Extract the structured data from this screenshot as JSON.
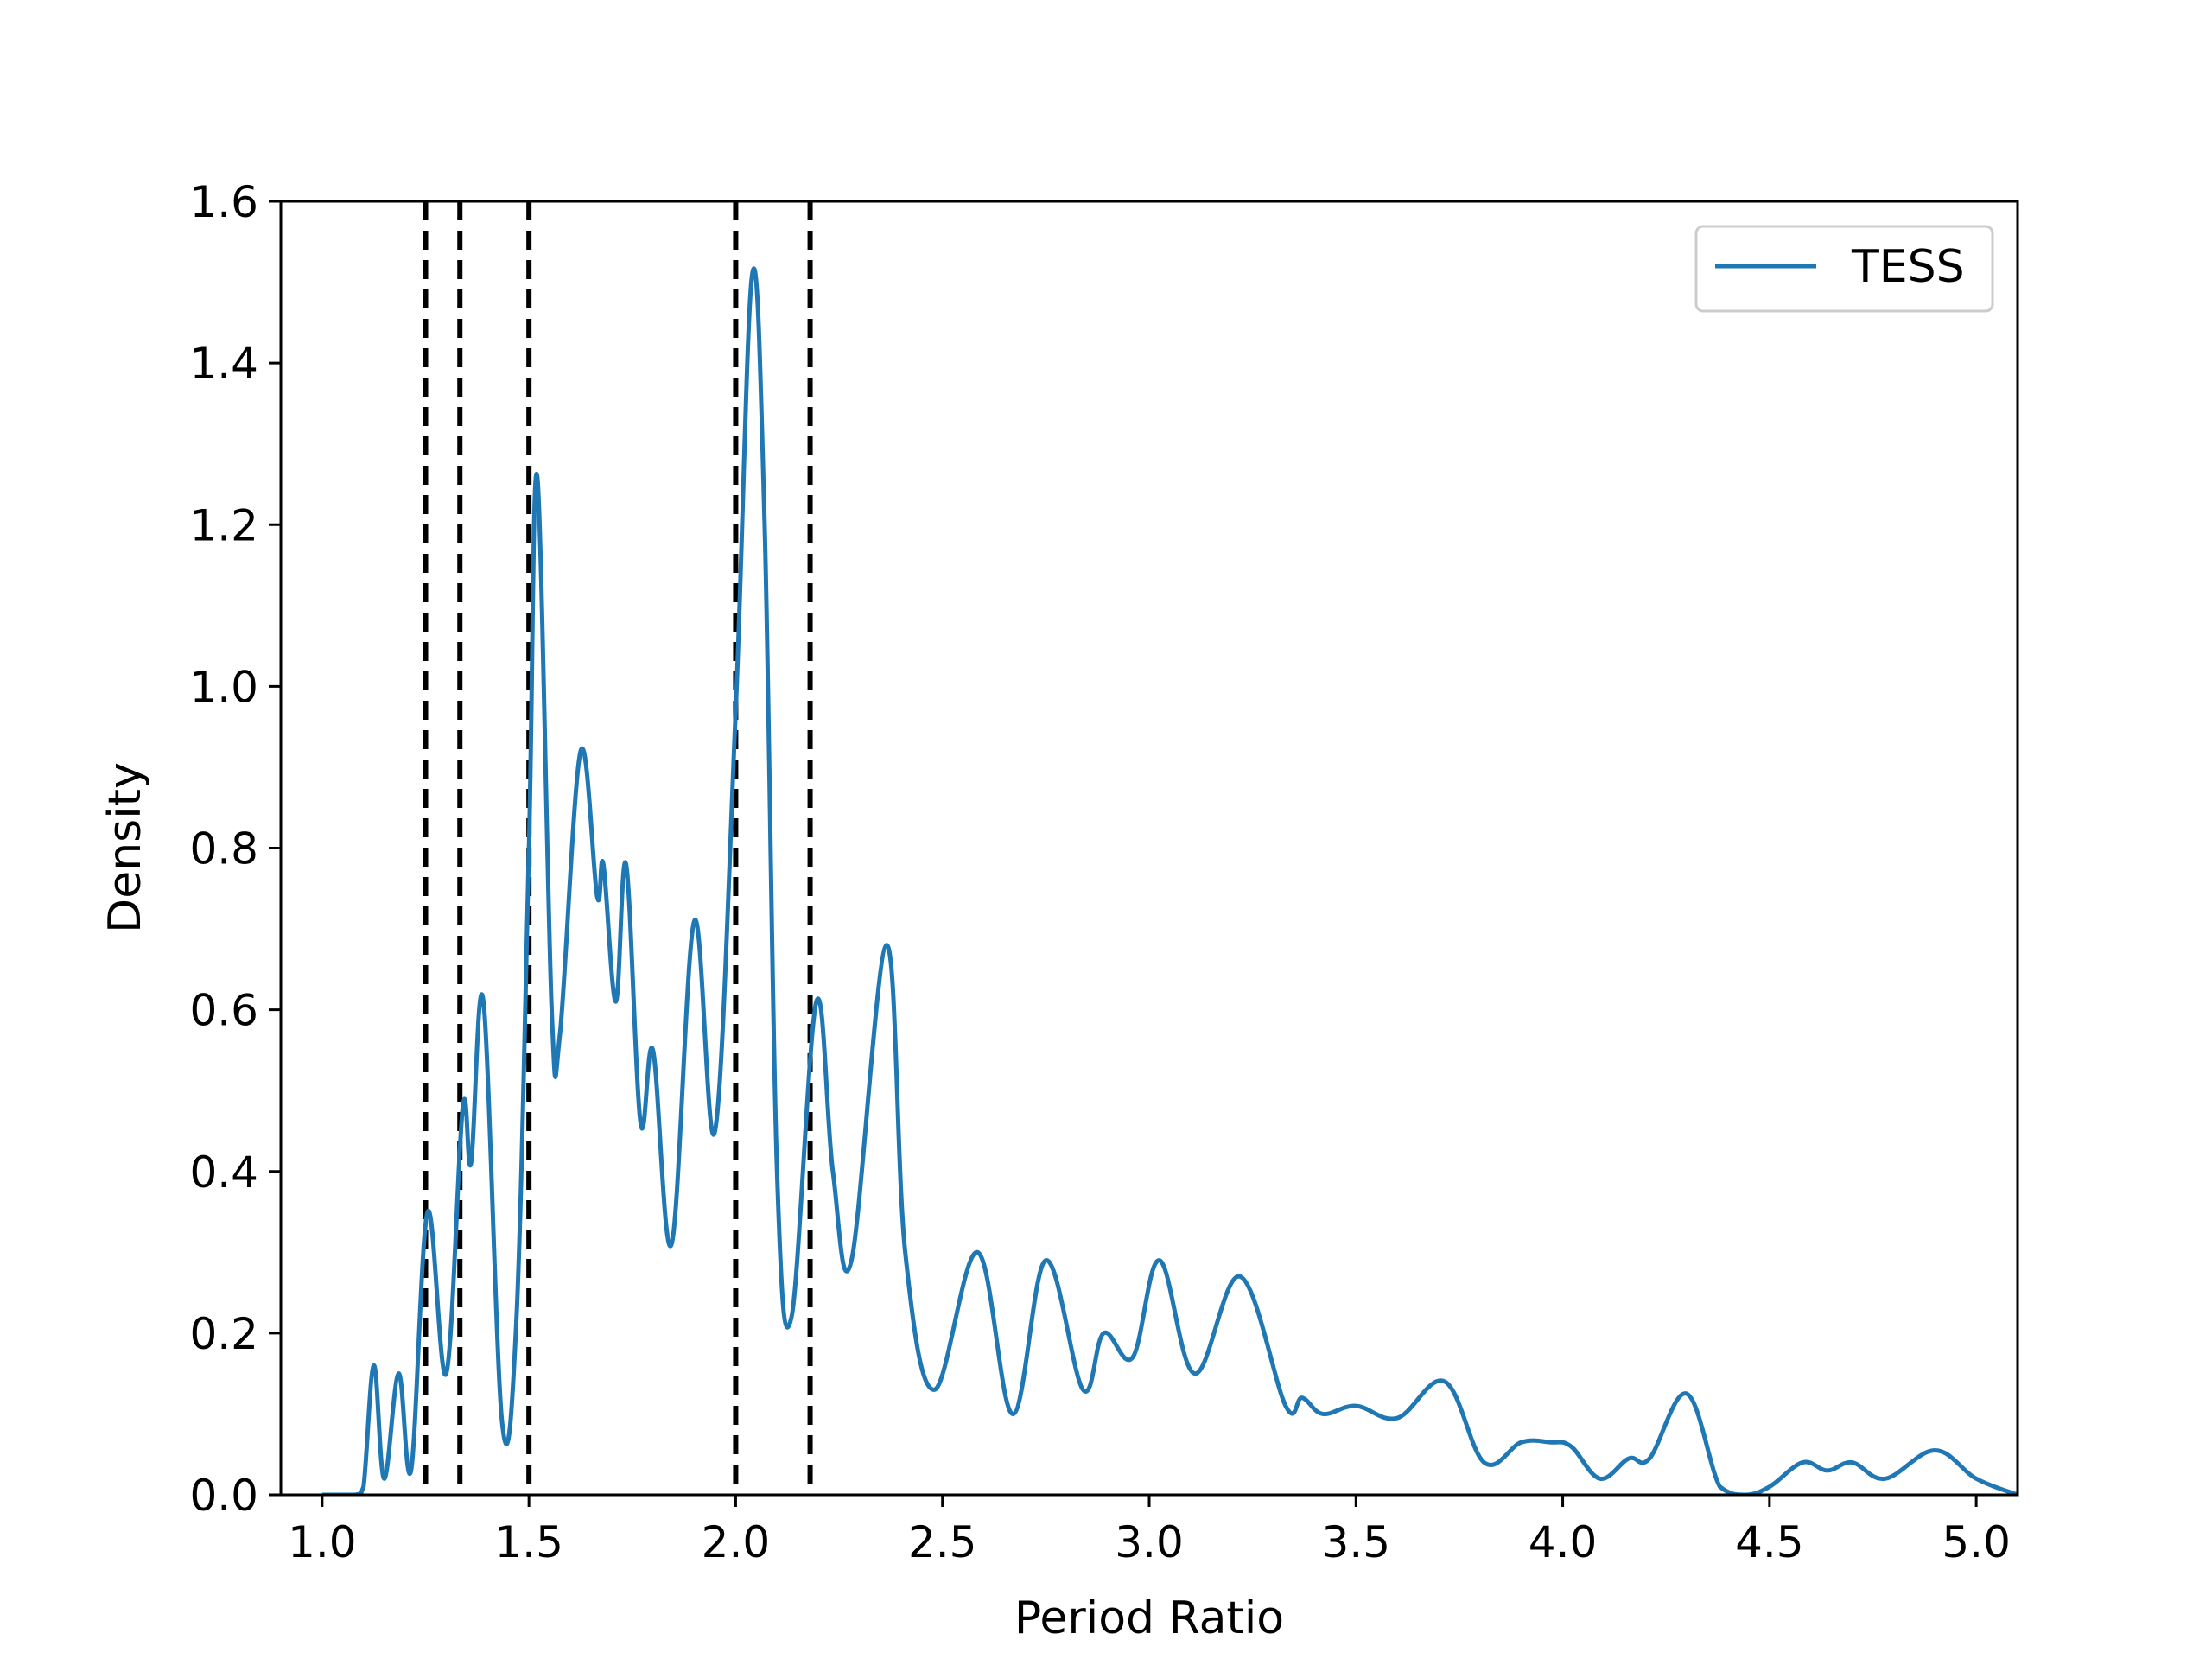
{
  "chart_data": {
    "type": "line",
    "title": "",
    "xlabel": "Period Ratio",
    "ylabel": "Density",
    "xlim": [
      0.9,
      5.1
    ],
    "ylim": [
      0.0,
      1.6
    ],
    "x_ticks": [
      1.0,
      1.5,
      2.0,
      2.5,
      3.0,
      3.5,
      4.0,
      4.5,
      5.0
    ],
    "x_tick_labels": [
      "1.0",
      "1.5",
      "2.0",
      "2.5",
      "3.0",
      "3.5",
      "4.0",
      "4.5",
      "5.0"
    ],
    "y_ticks": [
      0.0,
      0.2,
      0.4,
      0.6,
      0.8,
      1.0,
      1.2,
      1.4,
      1.6
    ],
    "y_tick_labels": [
      "0.0",
      "0.2",
      "0.4",
      "0.6",
      "0.8",
      "1.0",
      "1.2",
      "1.4",
      "1.6"
    ],
    "grid": false,
    "legend": {
      "position": "top-right",
      "entries": [
        "TESS"
      ]
    },
    "reference_lines": {
      "orientation": "vertical",
      "style": "dashed",
      "color": "#000000",
      "x": [
        1.25,
        1.333,
        1.5,
        2.0,
        2.18
      ]
    },
    "series": [
      {
        "name": "TESS",
        "color": "#1f77b4",
        "points": [
          [
            1.0,
            0.0
          ],
          [
            1.08,
            0.0
          ],
          [
            1.1,
            0.01
          ],
          [
            1.125,
            0.16
          ],
          [
            1.15,
            0.02
          ],
          [
            1.185,
            0.15
          ],
          [
            1.215,
            0.03
          ],
          [
            1.255,
            0.35
          ],
          [
            1.3,
            0.15
          ],
          [
            1.34,
            0.48
          ],
          [
            1.36,
            0.41
          ],
          [
            1.39,
            0.61
          ],
          [
            1.435,
            0.09
          ],
          [
            1.47,
            0.22
          ],
          [
            1.5,
            0.8
          ],
          [
            1.52,
            1.26
          ],
          [
            1.555,
            0.6
          ],
          [
            1.575,
            0.57
          ],
          [
            1.625,
            0.92
          ],
          [
            1.665,
            0.74
          ],
          [
            1.68,
            0.78
          ],
          [
            1.71,
            0.61
          ],
          [
            1.735,
            0.78
          ],
          [
            1.77,
            0.46
          ],
          [
            1.8,
            0.55
          ],
          [
            1.845,
            0.31
          ],
          [
            1.9,
            0.71
          ],
          [
            1.95,
            0.45
          ],
          [
            2.0,
            0.97
          ],
          [
            2.04,
            1.51
          ],
          [
            2.07,
            1.2
          ],
          [
            2.1,
            0.4
          ],
          [
            2.135,
            0.22
          ],
          [
            2.195,
            0.61
          ],
          [
            2.235,
            0.4
          ],
          [
            2.28,
            0.29
          ],
          [
            2.365,
            0.68
          ],
          [
            2.41,
            0.3
          ],
          [
            2.48,
            0.13
          ],
          [
            2.585,
            0.3
          ],
          [
            2.67,
            0.1
          ],
          [
            2.75,
            0.29
          ],
          [
            2.84,
            0.13
          ],
          [
            2.89,
            0.2
          ],
          [
            2.96,
            0.17
          ],
          [
            3.025,
            0.29
          ],
          [
            3.11,
            0.15
          ],
          [
            3.22,
            0.27
          ],
          [
            3.33,
            0.11
          ],
          [
            3.37,
            0.12
          ],
          [
            3.42,
            0.1
          ],
          [
            3.5,
            0.11
          ],
          [
            3.6,
            0.095
          ],
          [
            3.715,
            0.14
          ],
          [
            3.81,
            0.04
          ],
          [
            3.9,
            0.065
          ],
          [
            3.97,
            0.065
          ],
          [
            4.02,
            0.06
          ],
          [
            4.09,
            0.02
          ],
          [
            4.16,
            0.045
          ],
          [
            4.21,
            0.045
          ],
          [
            4.3,
            0.125
          ],
          [
            4.38,
            0.01
          ],
          [
            4.44,
            0.0
          ],
          [
            4.5,
            0.01
          ],
          [
            4.58,
            0.04
          ],
          [
            4.64,
            0.03
          ],
          [
            4.7,
            0.04
          ],
          [
            4.78,
            0.02
          ],
          [
            4.9,
            0.055
          ],
          [
            5.0,
            0.02
          ],
          [
            5.1,
            0.0
          ]
        ]
      }
    ]
  }
}
